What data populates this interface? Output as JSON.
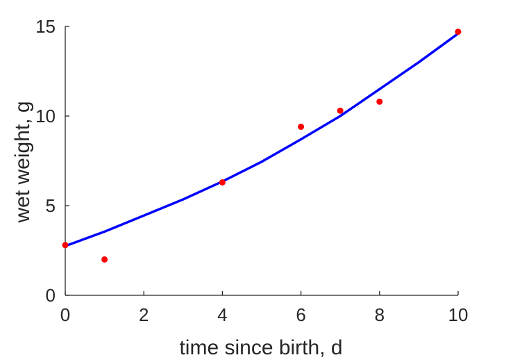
{
  "chart_data": {
    "type": "scatter",
    "title": "",
    "xlabel": "time since birth, d",
    "ylabel": "wet weight, g",
    "xlim": [
      0,
      10
    ],
    "ylim": [
      0,
      15
    ],
    "x_ticks": [
      "0",
      "2",
      "4",
      "6",
      "8",
      "10"
    ],
    "y_ticks": [
      "0",
      "5",
      "10",
      "15"
    ],
    "grid": false,
    "series": [
      {
        "kind": "points",
        "color": "#ff0000",
        "x": [
          0,
          1,
          4,
          6,
          7,
          8,
          10
        ],
        "y": [
          2.8,
          2.0,
          6.3,
          9.4,
          10.3,
          10.8,
          14.7
        ]
      },
      {
        "kind": "line",
        "color": "#0000ff",
        "x": [
          0,
          1,
          2,
          3,
          4,
          5,
          6,
          7,
          8,
          9,
          10
        ],
        "y": [
          2.75,
          3.55,
          4.45,
          5.35,
          6.35,
          7.45,
          8.7,
          10.0,
          11.5,
          13.0,
          14.6
        ]
      }
    ]
  }
}
